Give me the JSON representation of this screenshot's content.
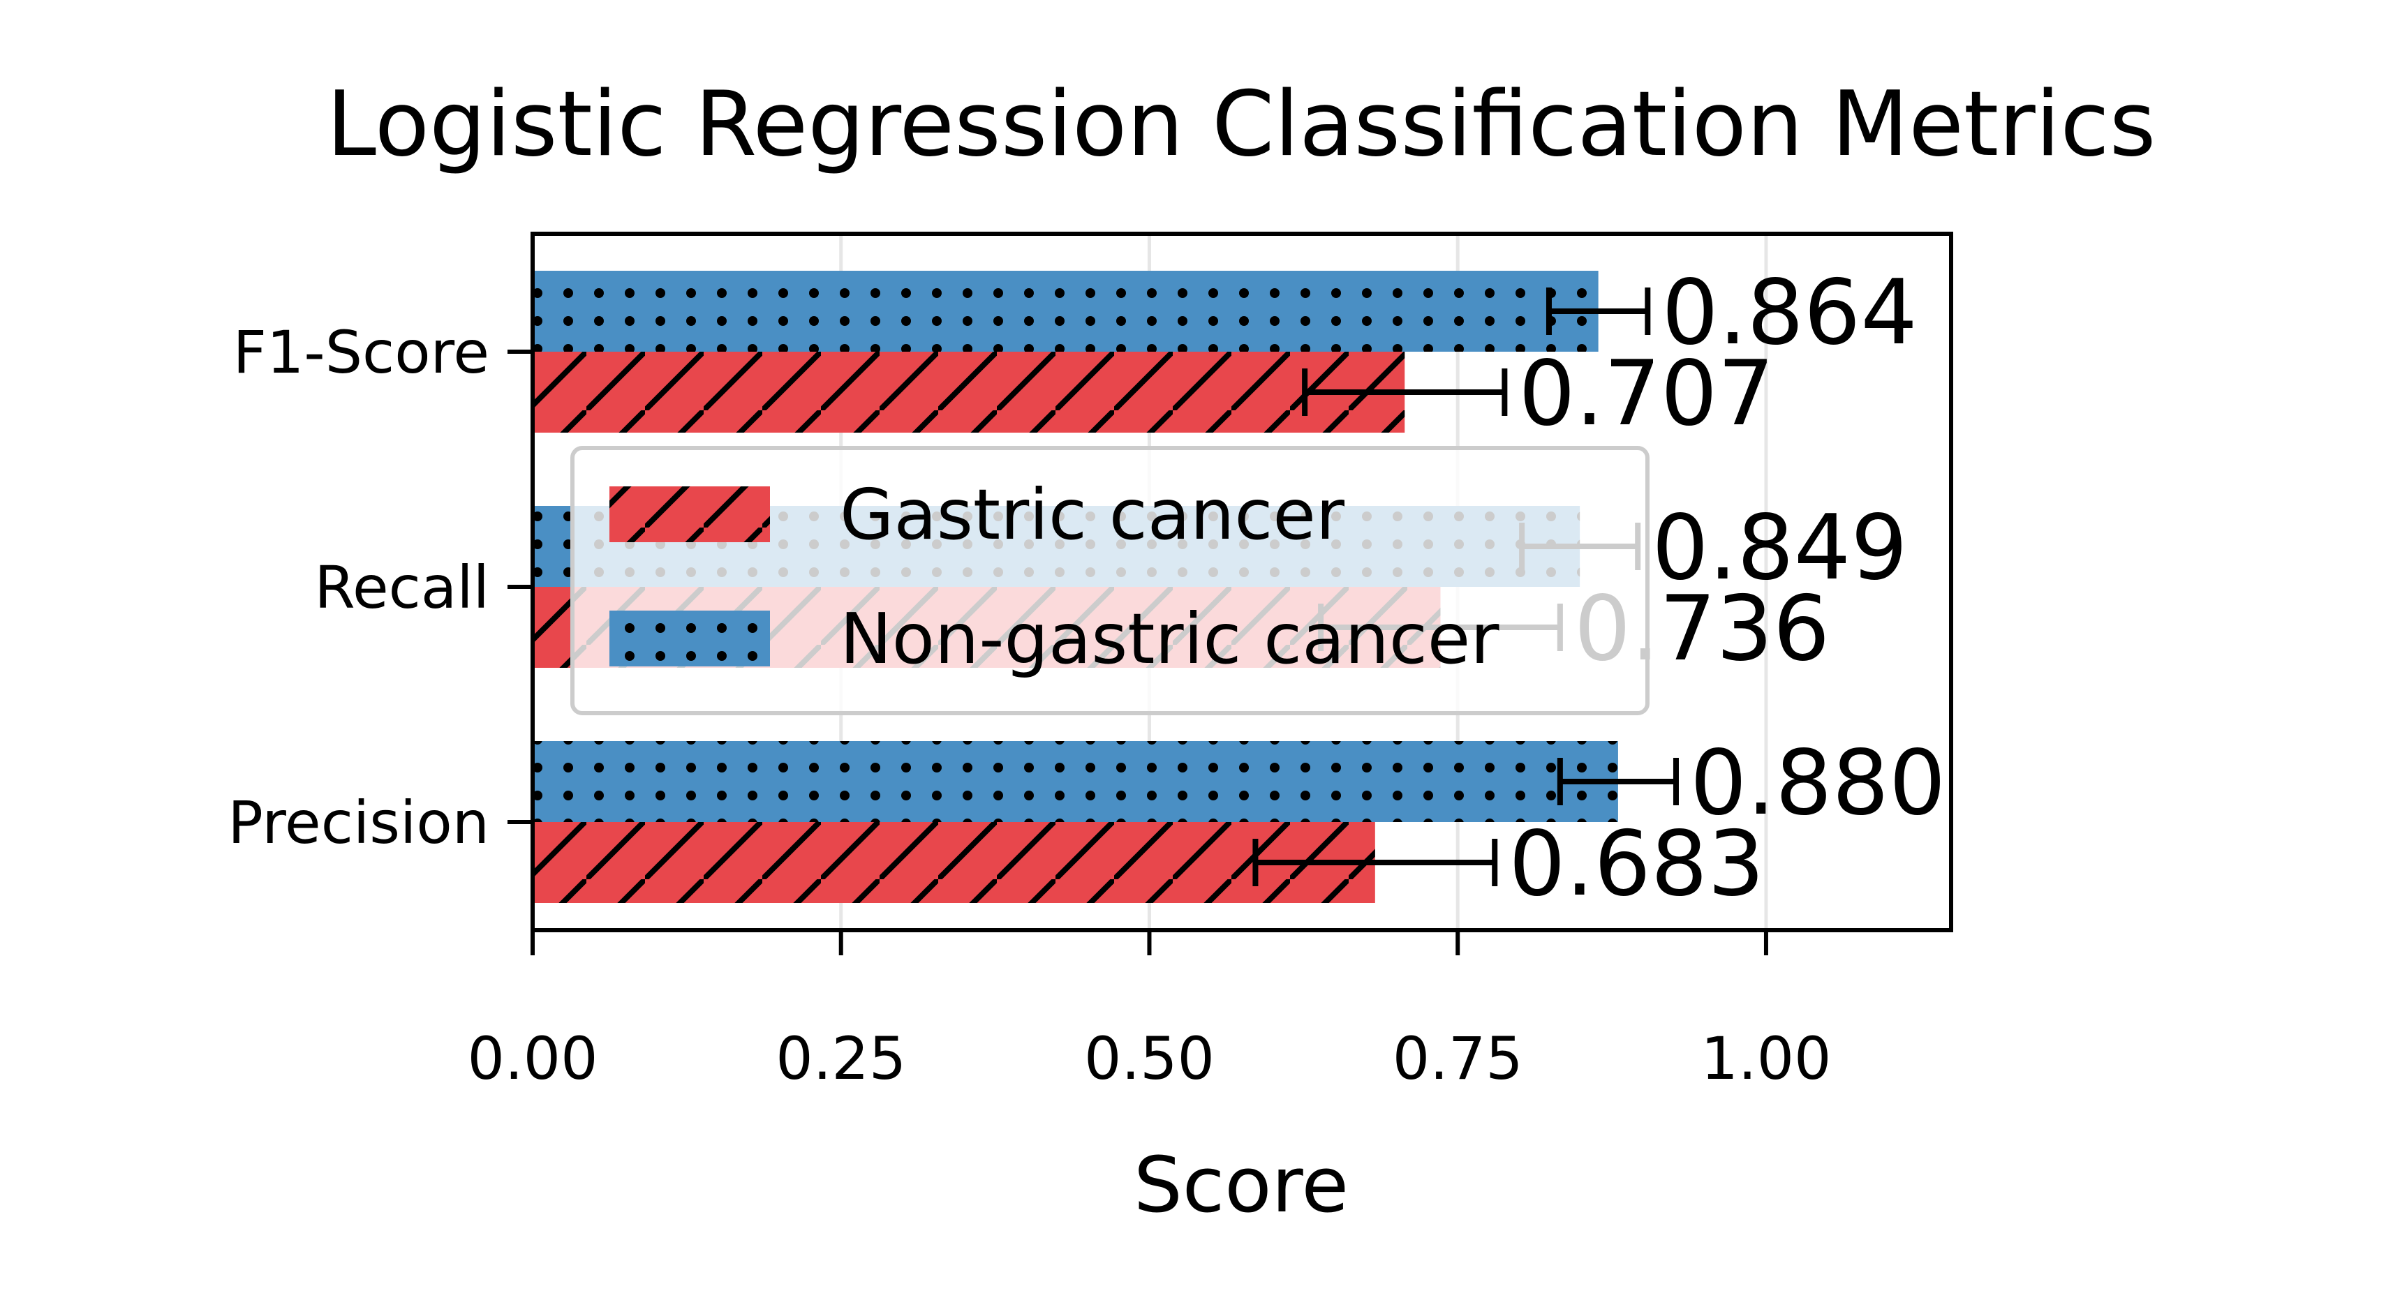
{
  "chart_data": {
    "type": "bar",
    "orientation": "horizontal",
    "title": "Logistic Regression Classification Metrics",
    "xlabel": "Score",
    "ylabel": "",
    "xlim": [
      0,
      1.15
    ],
    "xticks": [
      "0.00",
      "0.25",
      "0.50",
      "0.75",
      "1.00"
    ],
    "grid": true,
    "legend_position": "center-left",
    "categories": [
      "Precision",
      "Recall",
      "F1-Score"
    ],
    "series": [
      {
        "name": "Gastric cancer",
        "color": "#e8474c",
        "hatch": "diagonal",
        "values": [
          0.683,
          0.736,
          0.707
        ],
        "errors": [
          0.097,
          0.097,
          0.081
        ],
        "labels": [
          "0.683",
          "0.736",
          "0.707"
        ]
      },
      {
        "name": "Non-gastric cancer",
        "color": "#4a8fc4",
        "hatch": "dots",
        "values": [
          0.88,
          0.849,
          0.864
        ],
        "errors": [
          0.047,
          0.047,
          0.04
        ],
        "labels": [
          "0.880",
          "0.849",
          "0.864"
        ]
      }
    ]
  }
}
